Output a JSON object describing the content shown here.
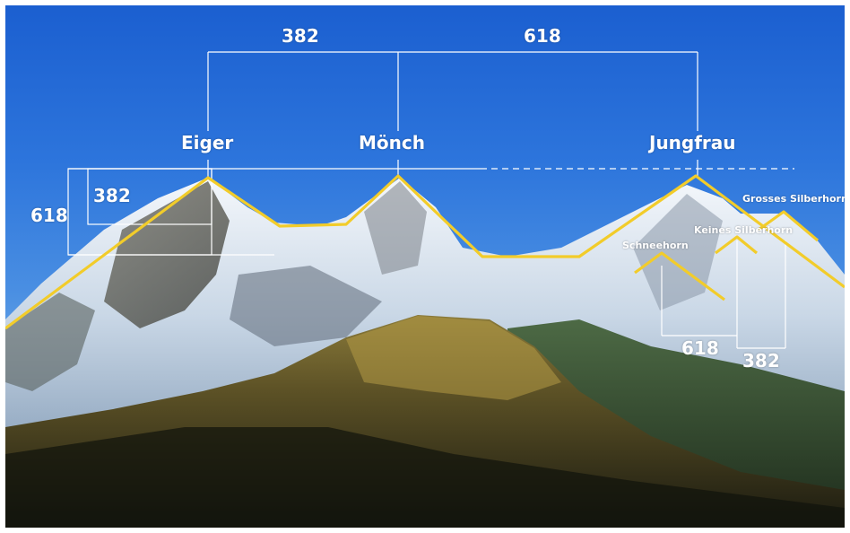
{
  "peaks": {
    "eiger": "Eiger",
    "moench": "Mönch",
    "jungfrau": "Jungfrau",
    "grosses_silberhorn": "Grosses Silberhorn",
    "keines_silberhorn": "Keines Silberhorn",
    "schneehorn": "Schneehorn"
  },
  "ratios": {
    "top_left": "382",
    "top_right": "618",
    "side_outer": "618",
    "side_inner": "382",
    "bottom_left": "618",
    "bottom_right": "382"
  },
  "colors": {
    "ridge_line": "#f2cc2a",
    "guide_line": "#ffffff",
    "sky_top": "#1b5fd0"
  }
}
